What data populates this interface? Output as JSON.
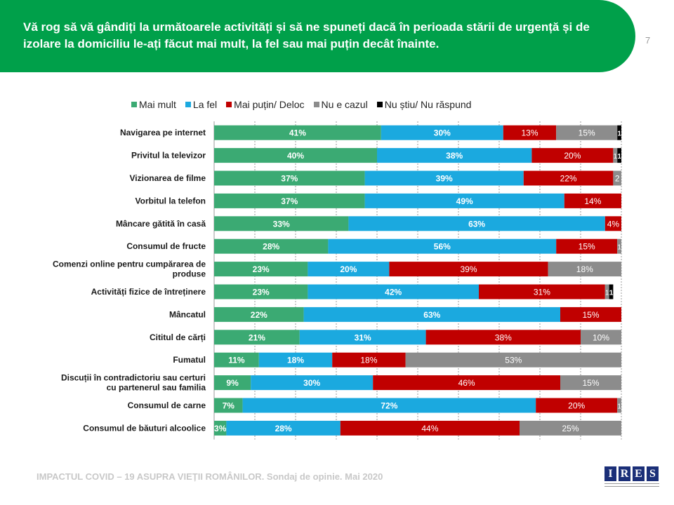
{
  "header": {
    "title": "Vă rog să vă gândiți la următoarele activități și să ne spuneți dacă în perioada stării de urgență și de izolare la domiciliu le-ați făcut mai mult, la fel sau mai puțin decât înainte.",
    "page_number": "7"
  },
  "footer": {
    "text": "IMPACTUL COVID – 19 ASUPRA VIEȚII ROMÂNILOR. Sondaj de opinie. Mai 2020"
  },
  "logo": {
    "letters": [
      "I",
      "R",
      "E",
      "S"
    ]
  },
  "colors": {
    "header_bg": "#00A04A",
    "mai_mult": "#3BAA73",
    "la_fel": "#1BA9DF",
    "mai_putin": "#C00000",
    "nu_e_cazul": "#8C8C8C",
    "nu_stiu": "#000000"
  },
  "chart_data": {
    "type": "bar",
    "orientation": "horizontal-stacked-100",
    "legend_position": "top",
    "grid": true,
    "xlim": [
      0,
      100
    ],
    "categories": [
      "Navigarea pe internet",
      "Privitul la televizor",
      "Vizionarea de filme",
      "Vorbitul la telefon",
      "Mâncare gătită în casă",
      "Consumul de fructe",
      "Comenzi online pentru cumpărarea de produse",
      "Activități fizice de întreținere",
      "Mâncatul",
      "Cititul de cărți",
      "Fumatul",
      "Discuții în contradictoriu sau certuri cu partenerul sau familia",
      "Consumul de carne",
      "Consumul de băuturi alcoolice"
    ],
    "series": [
      {
        "name": "Mai mult",
        "color": "#3BAA73",
        "values": [
          41,
          40,
          37,
          37,
          33,
          28,
          23,
          23,
          22,
          21,
          11,
          9,
          7,
          3
        ]
      },
      {
        "name": "La fel",
        "color": "#1BA9DF",
        "values": [
          30,
          38,
          39,
          49,
          63,
          56,
          20,
          42,
          63,
          31,
          18,
          30,
          72,
          28
        ]
      },
      {
        "name": "Mai puțin/ Deloc",
        "color": "#C00000",
        "values": [
          13,
          20,
          22,
          14,
          4,
          15,
          39,
          31,
          15,
          38,
          18,
          46,
          20,
          44
        ]
      },
      {
        "name": "Nu e cazul",
        "color": "#8C8C8C",
        "values": [
          15,
          1,
          2,
          0,
          0,
          1,
          18,
          1,
          0,
          10,
          53,
          15,
          1,
          25
        ]
      },
      {
        "name": "Nu știu/ Nu răspund",
        "color": "#000000",
        "values": [
          1,
          1,
          0,
          0,
          0,
          0,
          0,
          1,
          0,
          0,
          0,
          0,
          0,
          0
        ]
      }
    ]
  }
}
